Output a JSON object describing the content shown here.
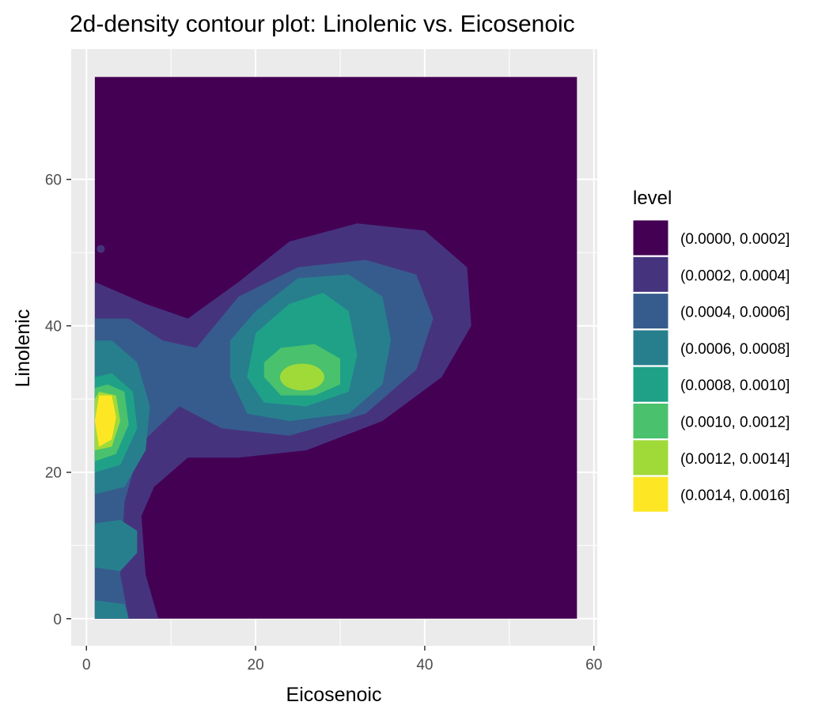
{
  "chart_data": {
    "type": "heatmap",
    "title": "2d-density contour plot: Linolenic vs. Eicosenoic",
    "xlabel": "Eicosenoic",
    "ylabel": "Linolenic",
    "xlim": [
      -1.8,
      60.4
    ],
    "ylim": [
      -3.7,
      77.8
    ],
    "x_ticks": [
      0,
      20,
      40,
      60
    ],
    "y_ticks": [
      0,
      20,
      40,
      60
    ],
    "x_tick_labels": [
      "0",
      "20",
      "40",
      "60"
    ],
    "y_tick_labels": [
      "0",
      "20",
      "40",
      "60"
    ],
    "grid": true,
    "density_region": {
      "x": [
        1,
        58
      ],
      "y": [
        0,
        74
      ]
    },
    "density_peaks": [
      {
        "x": 2,
        "y": 27.5,
        "level": "(0.0014, 0.0016]"
      },
      {
        "x": 25.5,
        "y": 33,
        "level": "(0.0012, 0.0014]"
      },
      {
        "x": 3,
        "y": 10,
        "level": "(0.0006, 0.0008]"
      },
      {
        "x": 1.5,
        "y": 0.5,
        "level": "(0.0006, 0.0008]"
      }
    ],
    "legend": {
      "title": "level",
      "position": "right",
      "entries": [
        {
          "label": "(0.0000, 0.0002]",
          "color": "#440154"
        },
        {
          "label": "(0.0002, 0.0004]",
          "color": "#46337E"
        },
        {
          "label": "(0.0004, 0.0006]",
          "color": "#365C8D"
        },
        {
          "label": "(0.0006, 0.0008]",
          "color": "#277F8E"
        },
        {
          "label": "(0.0008, 0.0010]",
          "color": "#1FA187"
        },
        {
          "label": "(0.0010, 0.0012]",
          "color": "#4AC16D"
        },
        {
          "label": "(0.0012, 0.0014]",
          "color": "#A0DA39"
        },
        {
          "label": "(0.0014, 0.0016]",
          "color": "#FDE725"
        }
      ]
    },
    "colors": {
      "panel_background": "#EBEBEB",
      "grid_major": "#FFFFFF"
    }
  }
}
